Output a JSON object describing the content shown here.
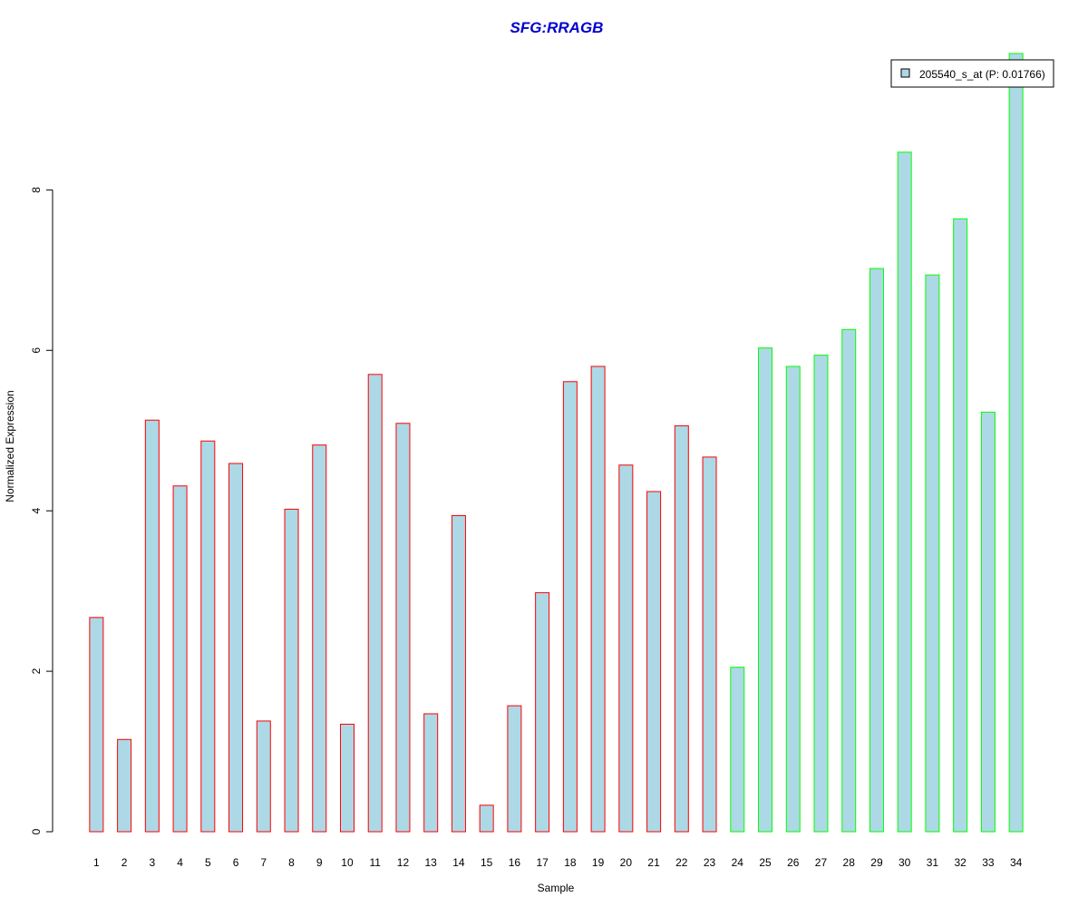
{
  "chart_data": {
    "type": "bar",
    "title": "SFG:RRAGB",
    "xlabel": "Sample",
    "ylabel": "Normalized Expression",
    "categories": [
      "1",
      "2",
      "3",
      "4",
      "5",
      "6",
      "7",
      "8",
      "9",
      "10",
      "11",
      "12",
      "13",
      "14",
      "15",
      "16",
      "17",
      "18",
      "19",
      "20",
      "21",
      "22",
      "23",
      "24",
      "25",
      "26",
      "27",
      "28",
      "29",
      "30",
      "31",
      "32",
      "33",
      "34"
    ],
    "series": [
      {
        "name": "205540_s_at (P: 0.01766)",
        "values": [
          2.67,
          1.15,
          5.13,
          4.31,
          4.87,
          4.59,
          1.38,
          4.02,
          4.82,
          1.34,
          5.7,
          5.09,
          1.47,
          3.94,
          0.33,
          1.57,
          2.98,
          5.61,
          5.8,
          4.57,
          4.24,
          5.06,
          4.67,
          2.05,
          6.03,
          5.8,
          5.94,
          6.26,
          7.02,
          8.47,
          6.94,
          7.64,
          5.23,
          9.7
        ]
      }
    ],
    "group_of_bar": [
      "a",
      "a",
      "a",
      "a",
      "a",
      "a",
      "a",
      "a",
      "a",
      "a",
      "a",
      "a",
      "a",
      "a",
      "a",
      "a",
      "a",
      "a",
      "a",
      "a",
      "a",
      "a",
      "a",
      "b",
      "b",
      "b",
      "b",
      "b",
      "b",
      "b",
      "b",
      "b",
      "b",
      "b"
    ],
    "colors": {
      "fill": "#add8e6",
      "group_a_border": "#ff0000",
      "group_b_border": "#00ff00",
      "title": "#0000cd"
    },
    "yticks": [
      "0",
      "2",
      "4",
      "6",
      "8"
    ],
    "ylim": [
      0,
      9.7
    ],
    "grid": false,
    "legend_position": "top-right"
  }
}
